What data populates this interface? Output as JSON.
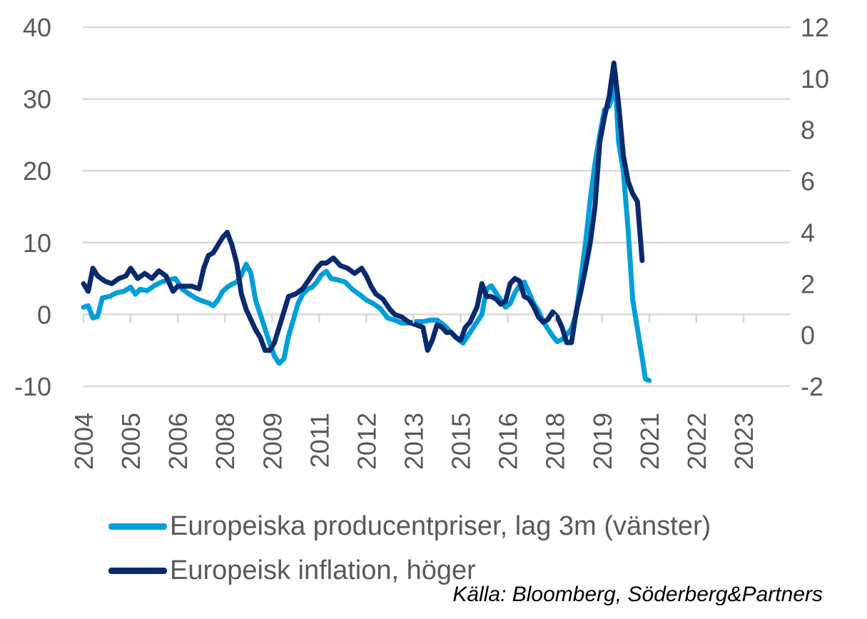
{
  "chart_data": {
    "type": "line",
    "title": "",
    "xlabel": "",
    "ylabel": "",
    "x_ticks": [
      "2004",
      "2005",
      "2006",
      "2008",
      "2009",
      "2011",
      "2012",
      "2013",
      "2015",
      "2016",
      "2018",
      "2019",
      "2021",
      "2022",
      "2023"
    ],
    "x_tick_positions": [
      2004.0,
      2005.0,
      2006.0,
      2007.0,
      2008.0,
      2009.0,
      2010.0,
      2011.0,
      2012.0,
      2013.0,
      2014.0,
      2015.0,
      2016.0,
      2017.0,
      2018.0
    ],
    "xlim": [
      2004.0,
      2018.5
    ],
    "y_left": {
      "ticks": [
        "40",
        "30",
        "20",
        "10",
        "0",
        "-10"
      ],
      "tick_values": [
        40,
        30,
        20,
        10,
        0,
        -10
      ],
      "ylim": [
        -10,
        40
      ]
    },
    "y_right": {
      "ticks": [
        "12",
        "10",
        "8",
        "6",
        "4",
        "2",
        "0",
        "-2"
      ],
      "tick_values": [
        12,
        10,
        8,
        6,
        4,
        2,
        0,
        -2
      ],
      "ylim": [
        -2,
        12
      ]
    },
    "grid": true,
    "legend_position": "bottom-left",
    "colors": {
      "producer": "#009fda",
      "inflation": "#0a2a6e",
      "grid": "#d9d9d9",
      "text": "#58595b"
    },
    "series": [
      {
        "name": "Europeiska producentpriser, lag 3m (vänster)",
        "axis": "left",
        "color": "#009fda",
        "points": [
          [
            2004.0,
            1.0
          ],
          [
            2004.1,
            1.2
          ],
          [
            2004.2,
            -0.5
          ],
          [
            2004.3,
            -0.3
          ],
          [
            2004.4,
            2.3
          ],
          [
            2004.55,
            2.5
          ],
          [
            2004.7,
            3.0
          ],
          [
            2004.85,
            3.2
          ],
          [
            2005.0,
            3.8
          ],
          [
            2005.1,
            2.8
          ],
          [
            2005.2,
            3.5
          ],
          [
            2005.35,
            3.3
          ],
          [
            2005.5,
            4.0
          ],
          [
            2005.65,
            4.5
          ],
          [
            2005.8,
            4.8
          ],
          [
            2005.95,
            5.0
          ],
          [
            2006.1,
            3.5
          ],
          [
            2006.25,
            2.8
          ],
          [
            2006.4,
            2.2
          ],
          [
            2006.55,
            1.8
          ],
          [
            2006.65,
            1.6
          ],
          [
            2006.75,
            1.2
          ],
          [
            2006.85,
            2.0
          ],
          [
            2006.95,
            3.2
          ],
          [
            2007.05,
            3.8
          ],
          [
            2007.15,
            4.2
          ],
          [
            2007.25,
            4.5
          ],
          [
            2007.35,
            5.5
          ],
          [
            2007.45,
            7.0
          ],
          [
            2007.55,
            5.8
          ],
          [
            2007.65,
            2.0
          ],
          [
            2007.75,
            0.0
          ],
          [
            2007.85,
            -2.0
          ],
          [
            2007.95,
            -4.0
          ],
          [
            2008.05,
            -5.8
          ],
          [
            2008.15,
            -6.8
          ],
          [
            2008.25,
            -6.2
          ],
          [
            2008.35,
            -3.0
          ],
          [
            2008.45,
            -0.8
          ],
          [
            2008.55,
            1.5
          ],
          [
            2008.65,
            2.8
          ],
          [
            2008.75,
            3.5
          ],
          [
            2008.85,
            3.8
          ],
          [
            2008.95,
            4.5
          ],
          [
            2009.05,
            5.5
          ],
          [
            2009.15,
            6.0
          ],
          [
            2009.25,
            5.0
          ],
          [
            2009.4,
            4.8
          ],
          [
            2009.55,
            4.5
          ],
          [
            2009.7,
            3.5
          ],
          [
            2009.85,
            2.8
          ],
          [
            2010.0,
            2.0
          ],
          [
            2010.15,
            1.5
          ],
          [
            2010.3,
            0.8
          ],
          [
            2010.45,
            -0.5
          ],
          [
            2010.6,
            -0.8
          ],
          [
            2010.75,
            -1.2
          ],
          [
            2010.9,
            -1.2
          ],
          [
            2011.05,
            -1.0
          ],
          [
            2011.2,
            -1.0
          ],
          [
            2011.35,
            -0.8
          ],
          [
            2011.5,
            -0.8
          ],
          [
            2011.65,
            -1.5
          ],
          [
            2011.8,
            -2.5
          ],
          [
            2011.95,
            -3.5
          ],
          [
            2012.05,
            -4.0
          ],
          [
            2012.15,
            -3.0
          ],
          [
            2012.25,
            -2.0
          ],
          [
            2012.35,
            -1.0
          ],
          [
            2012.45,
            0.0
          ],
          [
            2012.55,
            3.5
          ],
          [
            2012.65,
            4.0
          ],
          [
            2012.75,
            3.0
          ],
          [
            2012.85,
            2.0
          ],
          [
            2012.95,
            1.0
          ],
          [
            2013.05,
            1.5
          ],
          [
            2013.15,
            3.0
          ],
          [
            2013.25,
            4.0
          ],
          [
            2013.35,
            4.5
          ],
          [
            2013.45,
            3.0
          ],
          [
            2013.55,
            1.5
          ],
          [
            2013.65,
            0.5
          ],
          [
            2013.75,
            -1.0
          ],
          [
            2013.85,
            -2.0
          ],
          [
            2013.95,
            -3.0
          ],
          [
            2014.05,
            -3.8
          ],
          [
            2014.15,
            -3.5
          ],
          [
            2014.25,
            -2.8
          ],
          [
            2014.35,
            -2.0
          ],
          [
            2014.45,
            0.0
          ],
          [
            2014.55,
            5.0
          ],
          [
            2014.65,
            10.0
          ],
          [
            2014.75,
            16.0
          ],
          [
            2014.85,
            21.0
          ],
          [
            2014.95,
            25.0
          ],
          [
            2015.05,
            28.5
          ],
          [
            2015.15,
            29.0
          ],
          [
            2015.22,
            30.5
          ],
          [
            2015.28,
            32.0
          ],
          [
            2015.35,
            24.0
          ],
          [
            2015.45,
            20.0
          ],
          [
            2015.55,
            12.0
          ],
          [
            2015.65,
            2.0
          ],
          [
            2015.75,
            -2.0
          ],
          [
            2015.85,
            -6.0
          ],
          [
            2015.92,
            -9.0
          ],
          [
            2016.0,
            -9.2
          ]
        ]
      },
      {
        "name": "Europeisk inflation, höger",
        "axis": "right",
        "color": "#0a2a6e",
        "points": [
          [
            2004.0,
            2.0
          ],
          [
            2004.1,
            1.7
          ],
          [
            2004.2,
            2.6
          ],
          [
            2004.3,
            2.3
          ],
          [
            2004.45,
            2.1
          ],
          [
            2004.6,
            2.0
          ],
          [
            2004.75,
            2.2
          ],
          [
            2004.9,
            2.3
          ],
          [
            2005.0,
            2.6
          ],
          [
            2005.15,
            2.2
          ],
          [
            2005.3,
            2.4
          ],
          [
            2005.45,
            2.2
          ],
          [
            2005.6,
            2.5
          ],
          [
            2005.75,
            2.3
          ],
          [
            2005.9,
            1.7
          ],
          [
            2006.0,
            1.9
          ],
          [
            2006.15,
            1.9
          ],
          [
            2006.3,
            1.9
          ],
          [
            2006.45,
            1.8
          ],
          [
            2006.55,
            2.6
          ],
          [
            2006.65,
            3.1
          ],
          [
            2006.75,
            3.2
          ],
          [
            2006.85,
            3.5
          ],
          [
            2006.95,
            3.8
          ],
          [
            2007.05,
            4.0
          ],
          [
            2007.15,
            3.5
          ],
          [
            2007.25,
            2.8
          ],
          [
            2007.35,
            1.6
          ],
          [
            2007.45,
            1.0
          ],
          [
            2007.55,
            0.6
          ],
          [
            2007.65,
            0.2
          ],
          [
            2007.75,
            -0.1
          ],
          [
            2007.85,
            -0.6
          ],
          [
            2007.95,
            -0.6
          ],
          [
            2008.05,
            -0.3
          ],
          [
            2008.15,
            0.3
          ],
          [
            2008.25,
            0.9
          ],
          [
            2008.35,
            1.5
          ],
          [
            2008.5,
            1.6
          ],
          [
            2008.65,
            1.8
          ],
          [
            2008.8,
            2.2
          ],
          [
            2008.95,
            2.6
          ],
          [
            2009.05,
            2.8
          ],
          [
            2009.15,
            2.8
          ],
          [
            2009.3,
            3.0
          ],
          [
            2009.45,
            2.7
          ],
          [
            2009.6,
            2.6
          ],
          [
            2009.75,
            2.4
          ],
          [
            2009.9,
            2.6
          ],
          [
            2010.0,
            2.3
          ],
          [
            2010.1,
            1.9
          ],
          [
            2010.2,
            1.6
          ],
          [
            2010.35,
            1.4
          ],
          [
            2010.5,
            1.0
          ],
          [
            2010.6,
            0.8
          ],
          [
            2010.75,
            0.7
          ],
          [
            2010.9,
            0.5
          ],
          [
            2011.05,
            0.4
          ],
          [
            2011.2,
            0.3
          ],
          [
            2011.3,
            -0.6
          ],
          [
            2011.4,
            -0.2
          ],
          [
            2011.5,
            0.4
          ],
          [
            2011.6,
            0.3
          ],
          [
            2011.7,
            0.1
          ],
          [
            2011.8,
            0.1
          ],
          [
            2011.9,
            -0.1
          ],
          [
            2012.0,
            -0.2
          ],
          [
            2012.1,
            0.3
          ],
          [
            2012.2,
            0.5
          ],
          [
            2012.35,
            1.1
          ],
          [
            2012.45,
            2.0
          ],
          [
            2012.55,
            1.5
          ],
          [
            2012.65,
            1.5
          ],
          [
            2012.75,
            1.4
          ],
          [
            2012.85,
            1.2
          ],
          [
            2012.95,
            1.3
          ],
          [
            2013.05,
            2.0
          ],
          [
            2013.15,
            2.2
          ],
          [
            2013.25,
            2.1
          ],
          [
            2013.35,
            1.5
          ],
          [
            2013.45,
            1.4
          ],
          [
            2013.55,
            1.1
          ],
          [
            2013.65,
            0.7
          ],
          [
            2013.75,
            0.5
          ],
          [
            2013.85,
            0.6
          ],
          [
            2013.95,
            0.9
          ],
          [
            2014.05,
            0.7
          ],
          [
            2014.15,
            0.3
          ],
          [
            2014.25,
            -0.3
          ],
          [
            2014.35,
            -0.3
          ],
          [
            2014.45,
            0.9
          ],
          [
            2014.55,
            1.7
          ],
          [
            2014.65,
            2.6
          ],
          [
            2014.75,
            3.6
          ],
          [
            2014.85,
            5.0
          ],
          [
            2014.95,
            7.5
          ],
          [
            2015.05,
            8.5
          ],
          [
            2015.15,
            9.3
          ],
          [
            2015.25,
            10.6
          ],
          [
            2015.35,
            9.0
          ],
          [
            2015.45,
            7.0
          ],
          [
            2015.55,
            6.0
          ],
          [
            2015.65,
            5.5
          ],
          [
            2015.75,
            5.2
          ],
          [
            2015.85,
            2.9
          ]
        ]
      }
    ]
  },
  "legend": {
    "items": [
      {
        "label": "Europeiska producentpriser, lag 3m (vänster)",
        "color": "#009fda"
      },
      {
        "label": "Europeisk inflation, höger",
        "color": "#0a2a6e"
      }
    ]
  },
  "source": "Källa: Bloomberg, Söderberg&Partners"
}
